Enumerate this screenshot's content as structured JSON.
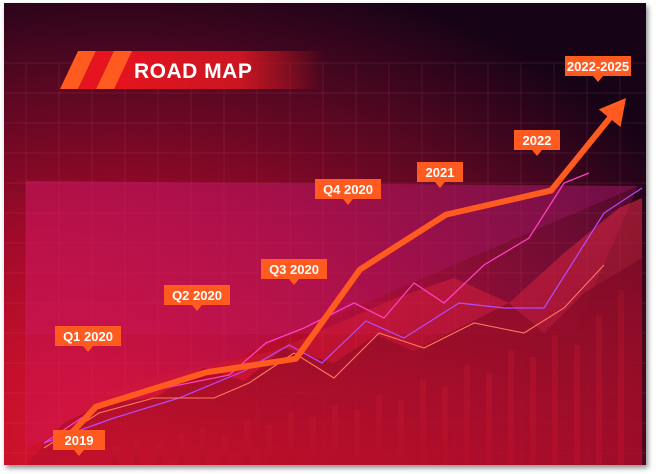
{
  "chart_data": {
    "type": "line",
    "title": "ROAD MAP",
    "categories": [
      "2019",
      "Q1 2020",
      "Q2 2020",
      "Q3 2020",
      "Q4 2020",
      "2021",
      "2022",
      "2022-2025"
    ],
    "milestones": [
      "2019",
      "Q1 2020",
      "Q2 2020",
      "Q3 2020",
      "Q4 2020",
      "2021",
      "2022",
      "2022-2025"
    ],
    "series": [
      {
        "values": [
          0,
          1,
          2,
          2.4,
          5,
          6.6,
          7.3,
          10
        ]
      }
    ],
    "xlabel": "",
    "ylabel": "",
    "grid": true
  },
  "colors": {
    "accent": "#ff5a1f",
    "background_top": "#160316",
    "background_bottom": "#d2102a",
    "panel": "#d4145a",
    "bars": "#e01b33",
    "decor_line_pink": "#ff40c8",
    "decor_line_purple": "#b24cff"
  }
}
